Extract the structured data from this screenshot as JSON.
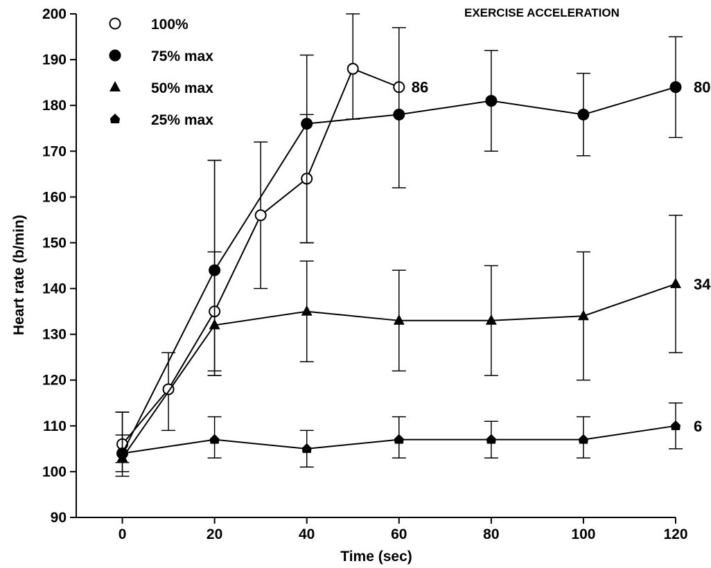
{
  "chart_data": {
    "type": "line",
    "title": "EXERCISE ACCELERATION",
    "xlabel": "Time (sec)",
    "ylabel": "Heart rate (b/min)",
    "xlim": [
      -10,
      120
    ],
    "ylim": [
      90,
      200
    ],
    "xticks": [
      0,
      20,
      40,
      60,
      80,
      100,
      120
    ],
    "yticks": [
      90,
      100,
      110,
      120,
      130,
      140,
      150,
      160,
      170,
      180,
      190,
      200
    ],
    "grid": false,
    "legend_position": "top-left",
    "series": [
      {
        "name": "100%",
        "marker": "circle-open",
        "x": [
          0,
          10,
          20,
          30,
          40,
          50,
          60
        ],
        "y": [
          106,
          118,
          135,
          156,
          164,
          188,
          184
        ],
        "err_low": [
          102,
          109,
          122,
          140,
          150,
          177,
          null
        ],
        "err_high": [
          113,
          126,
          148,
          172,
          178,
          200,
          null
        ],
        "end_label": "86"
      },
      {
        "name": "75% max",
        "marker": "circle-filled",
        "x": [
          0,
          20,
          40,
          60,
          80,
          100,
          120
        ],
        "y": [
          104,
          144,
          176,
          178,
          181,
          178,
          184
        ],
        "err_low": [
          100,
          121,
          150,
          162,
          170,
          169,
          173
        ],
        "err_high": [
          113,
          168,
          191,
          197,
          192,
          187,
          195
        ],
        "end_label": "80"
      },
      {
        "name": "50% max",
        "marker": "triangle",
        "x": [
          0,
          20,
          40,
          60,
          80,
          100,
          120
        ],
        "y": [
          103,
          132,
          135,
          133,
          133,
          134,
          141
        ],
        "err_low": [
          null,
          121,
          124,
          122,
          121,
          120,
          126
        ],
        "err_high": [
          null,
          168,
          146,
          144,
          145,
          148,
          156
        ],
        "end_label": "34"
      },
      {
        "name": "25% max",
        "marker": "house",
        "x": [
          0,
          20,
          40,
          60,
          80,
          100,
          120
        ],
        "y": [
          104,
          107,
          105,
          107,
          107,
          107,
          110
        ],
        "err_low": [
          99,
          103,
          101,
          103,
          103,
          103,
          105
        ],
        "err_high": [
          108,
          112,
          109,
          112,
          111,
          112,
          115
        ],
        "end_label": "6"
      }
    ]
  }
}
